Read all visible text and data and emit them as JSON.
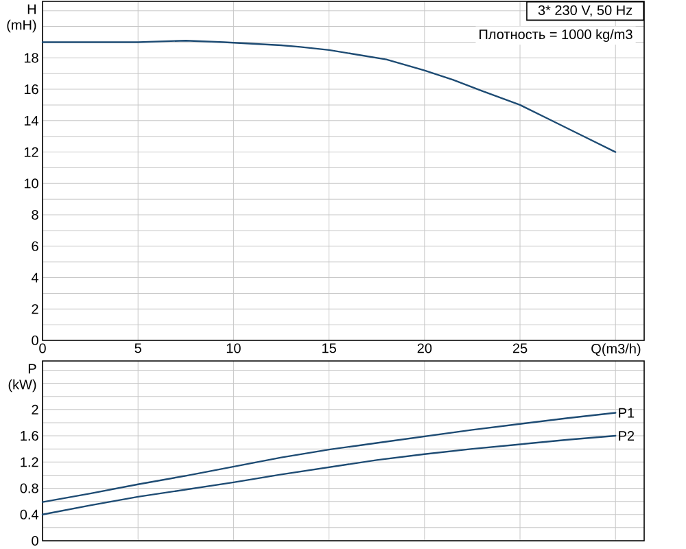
{
  "chart_data": [
    {
      "type": "line",
      "xlabel": "Q(m3/h)",
      "ylabel": "H (mH)",
      "x": [
        0,
        2.5,
        5,
        7.5,
        9.5,
        11,
        12.5,
        13.5,
        15,
        16.5,
        18,
        20,
        21.5,
        23,
        25,
        26.5,
        28.5,
        30
      ],
      "series": [
        {
          "color": "#1d4b73",
          "values": [
            19.0,
            19.0,
            19.0,
            19.1,
            19.0,
            18.9,
            18.8,
            18.7,
            18.5,
            18.2,
            17.9,
            17.2,
            16.6,
            15.9,
            15.0,
            14.1,
            12.9,
            12.0
          ]
        }
      ],
      "xlim": [
        0,
        31.5
      ],
      "ylim": [
        0,
        21.6
      ],
      "xticks": [
        0,
        5,
        10,
        15,
        20,
        25,
        {
          "value": 30,
          "label": null
        }
      ],
      "yticks": [
        0,
        {
          "value": 1,
          "label": null
        },
        2,
        {
          "value": 3,
          "label": null
        },
        4,
        {
          "value": 5,
          "label": null
        },
        6,
        {
          "value": 7,
          "label": null
        },
        8,
        {
          "value": 9,
          "label": null
        },
        10,
        {
          "value": 11,
          "label": null
        },
        12,
        {
          "value": 13,
          "label": null
        },
        14,
        {
          "value": 15,
          "label": null
        },
        16,
        {
          "value": 17,
          "label": null
        },
        18,
        {
          "value": 19,
          "label": null
        },
        {
          "value": 20,
          "label": null
        },
        {
          "value": 21,
          "label": null
        }
      ],
      "grid": true,
      "annotations": [
        "3* 230 V, 50 Hz",
        "Плотность = 1000 kg/m3"
      ]
    },
    {
      "type": "line",
      "ylabel": "P (kW)",
      "x": [
        0,
        2.5,
        5,
        7.5,
        10,
        12.5,
        15,
        17.5,
        20,
        22.5,
        25,
        27.5,
        30
      ],
      "series": [
        {
          "name": "P1",
          "color": "#1d4b73",
          "values": [
            0.59,
            0.72,
            0.86,
            0.99,
            1.13,
            1.27,
            1.39,
            1.49,
            1.59,
            1.69,
            1.78,
            1.87,
            1.95
          ]
        },
        {
          "name": "P2",
          "color": "#1d4b73",
          "values": [
            0.4,
            0.54,
            0.67,
            0.78,
            0.89,
            1.01,
            1.12,
            1.23,
            1.32,
            1.4,
            1.47,
            1.54,
            1.6
          ]
        }
      ],
      "xlim": [
        0,
        31.5
      ],
      "ylim": [
        0,
        2.74
      ],
      "xticks": [
        0,
        5,
        10,
        15,
        20,
        25,
        30
      ],
      "yticks": [
        0,
        {
          "value": 0.2,
          "label": null
        },
        0.4,
        {
          "value": 0.6,
          "label": null
        },
        0.8,
        {
          "value": 1.0,
          "label": null
        },
        1.2,
        {
          "value": 1.4,
          "label": null
        },
        1.6,
        {
          "value": 1.8,
          "label": null
        },
        2,
        {
          "value": 2.2,
          "label": null
        },
        {
          "value": 2.4,
          "label": null
        },
        {
          "value": 2.6,
          "label": null
        }
      ],
      "grid": true,
      "tick_labels": "y"
    }
  ]
}
